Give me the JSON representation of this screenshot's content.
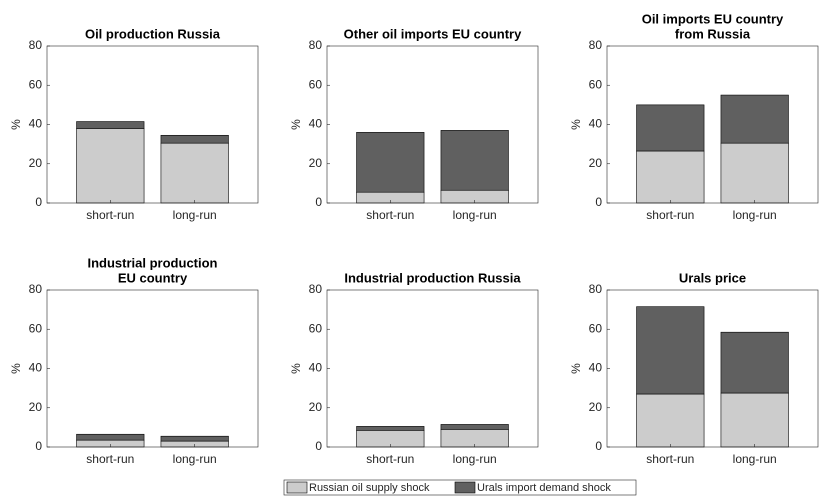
{
  "chart_data": [
    {
      "type": "stacked-bar",
      "title": [
        "Oil production Russia"
      ],
      "ylabel": "%",
      "categories": [
        "short-run",
        "long-run"
      ],
      "series": [
        {
          "name": "Russian oil supply shock",
          "color": "#cccccc",
          "values": [
            38,
            30.5
          ]
        },
        {
          "name": "Urals import demand shock",
          "color": "#606060",
          "values": [
            3.5,
            4
          ]
        }
      ],
      "ylim": [
        0,
        80
      ],
      "yticks": [
        0,
        20,
        40,
        60,
        80
      ]
    },
    {
      "type": "stacked-bar",
      "title": [
        "Other oil imports EU country"
      ],
      "ylabel": "%",
      "categories": [
        "short-run",
        "long-run"
      ],
      "series": [
        {
          "name": "Russian oil supply shock",
          "color": "#cccccc",
          "values": [
            5.5,
            6.5
          ]
        },
        {
          "name": "Urals import demand shock",
          "color": "#606060",
          "values": [
            30.5,
            30.5
          ]
        }
      ],
      "ylim": [
        0,
        80
      ],
      "yticks": [
        0,
        20,
        40,
        60,
        80
      ]
    },
    {
      "type": "stacked-bar",
      "title": [
        "Oil imports EU country",
        "from Russia"
      ],
      "ylabel": "%",
      "categories": [
        "short-run",
        "long-run"
      ],
      "series": [
        {
          "name": "Russian oil supply shock",
          "color": "#cccccc",
          "values": [
            26.5,
            30.5
          ]
        },
        {
          "name": "Urals import demand shock",
          "color": "#606060",
          "values": [
            23.5,
            24.5
          ]
        }
      ],
      "ylim": [
        0,
        80
      ],
      "yticks": [
        0,
        20,
        40,
        60,
        80
      ]
    },
    {
      "type": "stacked-bar",
      "title": [
        "Industrial production",
        "EU country"
      ],
      "ylabel": "%",
      "categories": [
        "short-run",
        "long-run"
      ],
      "series": [
        {
          "name": "Russian oil supply shock",
          "color": "#cccccc",
          "values": [
            3.5,
            3
          ]
        },
        {
          "name": "Urals import demand shock",
          "color": "#606060",
          "values": [
            3,
            2.5
          ]
        }
      ],
      "ylim": [
        0,
        80
      ],
      "yticks": [
        0,
        20,
        40,
        60,
        80
      ]
    },
    {
      "type": "stacked-bar",
      "title": [
        "Industrial production Russia"
      ],
      "ylabel": "%",
      "categories": [
        "short-run",
        "long-run"
      ],
      "series": [
        {
          "name": "Russian oil supply shock",
          "color": "#cccccc",
          "values": [
            8.5,
            9
          ]
        },
        {
          "name": "Urals import demand shock",
          "color": "#606060",
          "values": [
            2,
            2.5
          ]
        }
      ],
      "ylim": [
        0,
        80
      ],
      "yticks": [
        0,
        20,
        40,
        60,
        80
      ]
    },
    {
      "type": "stacked-bar",
      "title": [
        "Urals price"
      ],
      "ylabel": "%",
      "categories": [
        "short-run",
        "long-run"
      ],
      "series": [
        {
          "name": "Russian oil supply shock",
          "color": "#cccccc",
          "values": [
            27,
            27.5
          ]
        },
        {
          "name": "Urals import demand shock",
          "color": "#606060",
          "values": [
            44.5,
            31
          ]
        }
      ],
      "ylim": [
        0,
        80
      ],
      "yticks": [
        0,
        20,
        40,
        60,
        80
      ]
    }
  ]
}
